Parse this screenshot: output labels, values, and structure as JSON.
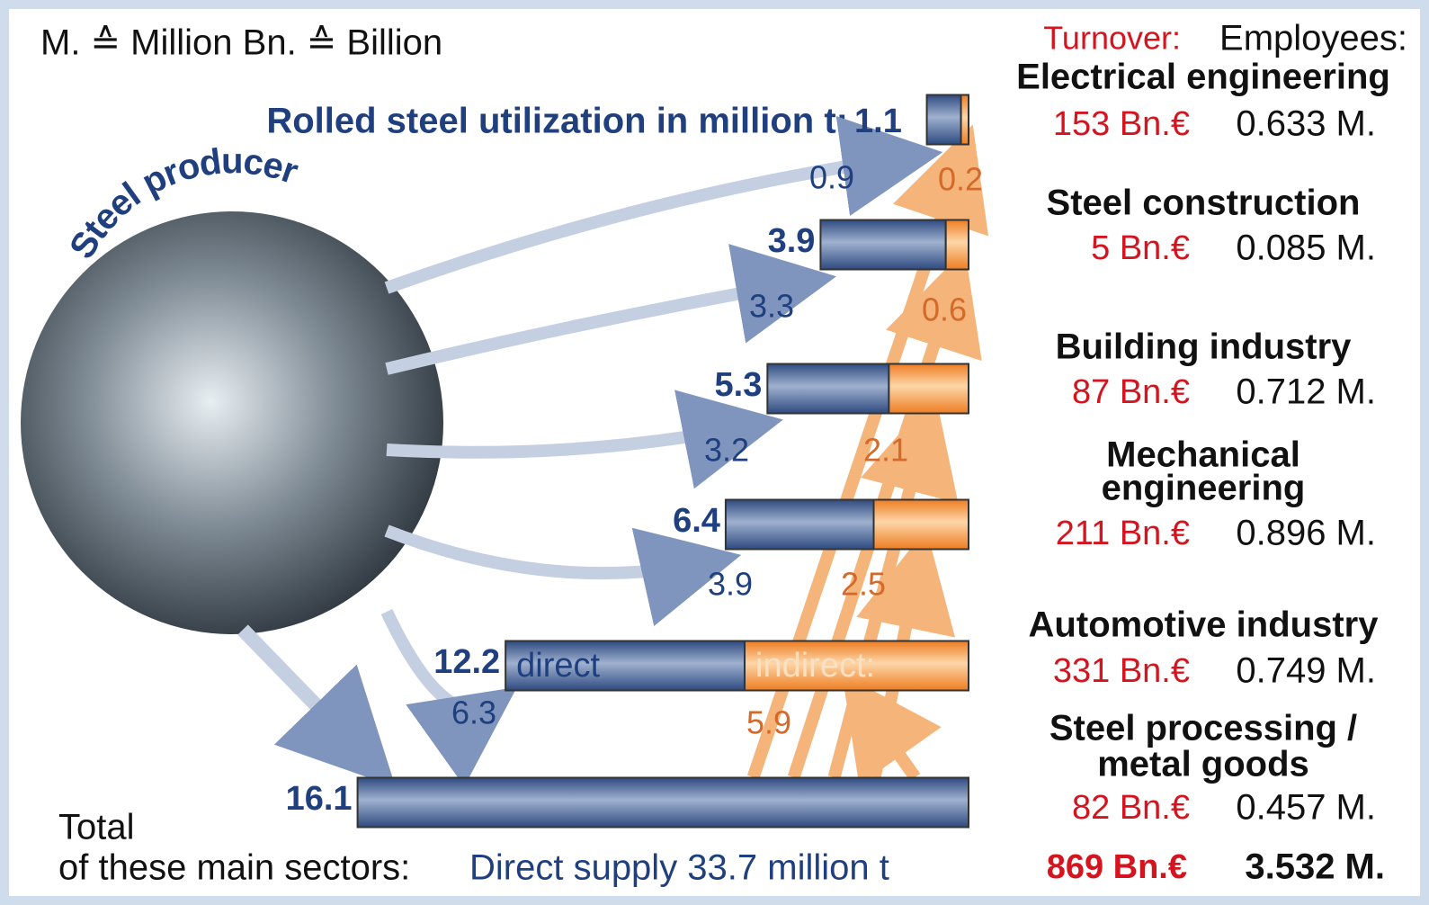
{
  "legend": "M. ≙ Million   Bn. ≙ Billion",
  "title": "Rolled steel utilization in million t:",
  "producer": "Steel producer",
  "turnover_header": "Turnover:",
  "employees_header": "Employees:",
  "direct_label": "direct",
  "indirect_label": "indirect:",
  "sectors": [
    {
      "name": [
        "Electrical engineering"
      ],
      "turnover": "153 Bn.€",
      "employees": "0.633 M.",
      "total": 1.1,
      "direct": 0.9,
      "indirect": 0.2
    },
    {
      "name": [
        "Steel construction"
      ],
      "turnover": "5 Bn.€",
      "employees": "0.085 M.",
      "total": 3.9,
      "direct": 3.3,
      "indirect": 0.6
    },
    {
      "name": [
        "Building industry"
      ],
      "turnover": "87 Bn.€",
      "employees": "0.712 M.",
      "total": 5.3,
      "direct": 3.2,
      "indirect": 2.1
    },
    {
      "name": [
        "Mechanical",
        "engineering"
      ],
      "turnover": "211 Bn.€",
      "employees": "0.896 M.",
      "total": 6.4,
      "direct": 3.9,
      "indirect": 2.5
    },
    {
      "name": [
        "Automotive industry"
      ],
      "turnover": "331 Bn.€",
      "employees": "0.749 M.",
      "total": 12.2,
      "direct": 6.3,
      "indirect": 5.9
    },
    {
      "name": [
        "Steel processing /",
        "metal goods"
      ],
      "turnover": "82 Bn.€",
      "employees": "0.457 M.",
      "total": 16.1
    }
  ],
  "total": {
    "label": [
      "Total",
      "of these main sectors:"
    ],
    "supply": "Direct supply 33.7 million t",
    "turnover": "869 Bn.€",
    "employees": "3.532 M."
  }
}
